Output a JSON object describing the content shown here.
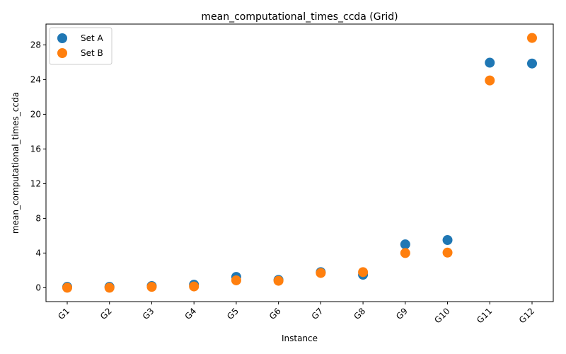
{
  "chart_data": {
    "type": "scatter",
    "title": "mean_computational_times_ccda (Grid)",
    "xlabel": "Instance",
    "ylabel": "mean_computational_times_ccda",
    "categories": [
      "G1",
      "G2",
      "G3",
      "G4",
      "G5",
      "G6",
      "G7",
      "G8",
      "G9",
      "G10",
      "G11",
      "G12"
    ],
    "ylim": [
      -1.6,
      30.4
    ],
    "yticks": [
      0,
      4,
      8,
      12,
      16,
      20,
      24,
      28
    ],
    "grid": false,
    "legend_position": "top-left",
    "series": [
      {
        "name": "Set A",
        "color": "#1f77b4",
        "values": [
          0.1,
          0.1,
          0.2,
          0.35,
          1.25,
          0.9,
          1.8,
          1.5,
          5.0,
          5.5,
          25.95,
          25.85
        ]
      },
      {
        "name": "Set B",
        "color": "#ff7f0e",
        "values": [
          0.0,
          0.0,
          0.1,
          0.15,
          0.85,
          0.8,
          1.7,
          1.8,
          4.0,
          4.05,
          23.9,
          28.8
        ]
      }
    ]
  }
}
